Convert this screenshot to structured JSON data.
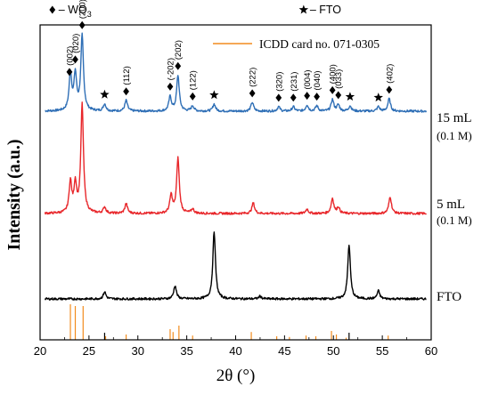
{
  "chart_data": {
    "type": "line",
    "xlabel": "2θ (°)",
    "ylabel": "Intensity (a.u.)",
    "xlim": [
      20,
      60
    ],
    "x_ticks": [
      "20",
      "25",
      "30",
      "35",
      "40",
      "45",
      "50",
      "55",
      "60"
    ],
    "grid": false,
    "top_legend": [
      {
        "marker": "diamond",
        "label_main": "– WO",
        "label_sub": "3",
        "x": 24.9
      },
      {
        "marker": "star",
        "label_main": "– FTO",
        "label_sub": "",
        "x": 50.6
      }
    ],
    "reference_legend": {
      "label": "ICDD card no. 071-0305",
      "color": "#f28c1e"
    },
    "series": [
      {
        "name": "15 mL",
        "sublabel": "(0.1 M)",
        "color": "#2f6fb6",
        "baseline": 0.0,
        "peaks": [
          {
            "x": 23.1,
            "h": 0.42
          },
          {
            "x": 23.6,
            "h": 0.4
          },
          {
            "x": 24.3,
            "h": 0.84
          },
          {
            "x": 26.6,
            "h": 0.08
          },
          {
            "x": 28.8,
            "h": 0.12
          },
          {
            "x": 33.3,
            "h": 0.16
          },
          {
            "x": 34.1,
            "h": 0.4
          },
          {
            "x": 35.6,
            "h": 0.06
          },
          {
            "x": 37.8,
            "h": 0.08
          },
          {
            "x": 41.7,
            "h": 0.1
          },
          {
            "x": 44.4,
            "h": 0.05
          },
          {
            "x": 45.9,
            "h": 0.05
          },
          {
            "x": 47.3,
            "h": 0.07
          },
          {
            "x": 48.3,
            "h": 0.06
          },
          {
            "x": 49.9,
            "h": 0.13
          },
          {
            "x": 50.5,
            "h": 0.07
          },
          {
            "x": 51.7,
            "h": 0.06
          },
          {
            "x": 54.6,
            "h": 0.05
          },
          {
            "x": 55.7,
            "h": 0.14
          }
        ]
      },
      {
        "name": "5 mL",
        "sublabel": "(0.1 M)",
        "color": "#e8262a",
        "baseline": 0.0,
        "peaks": [
          {
            "x": 23.1,
            "h": 0.35
          },
          {
            "x": 23.6,
            "h": 0.32
          },
          {
            "x": 24.3,
            "h": 1.22
          },
          {
            "x": 26.6,
            "h": 0.07
          },
          {
            "x": 28.8,
            "h": 0.11
          },
          {
            "x": 33.4,
            "h": 0.2
          },
          {
            "x": 34.1,
            "h": 0.62
          },
          {
            "x": 35.6,
            "h": 0.05
          },
          {
            "x": 41.8,
            "h": 0.12
          },
          {
            "x": 47.3,
            "h": 0.05
          },
          {
            "x": 49.9,
            "h": 0.17
          },
          {
            "x": 50.5,
            "h": 0.07
          },
          {
            "x": 55.8,
            "h": 0.19
          }
        ]
      },
      {
        "name": "FTO",
        "sublabel": "",
        "color": "#000000",
        "baseline": 0.0,
        "peaks": [
          {
            "x": 26.6,
            "h": 0.08
          },
          {
            "x": 33.8,
            "h": 0.15
          },
          {
            "x": 37.8,
            "h": 0.76
          },
          {
            "x": 42.5,
            "h": 0.03
          },
          {
            "x": 51.6,
            "h": 0.61
          },
          {
            "x": 54.6,
            "h": 0.09
          }
        ]
      }
    ],
    "reference_lines": [
      {
        "x": 23.1,
        "h": 1.0
      },
      {
        "x": 23.6,
        "h": 0.95
      },
      {
        "x": 24.4,
        "h": 0.95
      },
      {
        "x": 26.7,
        "h": 0.1
      },
      {
        "x": 28.8,
        "h": 0.15
      },
      {
        "x": 33.3,
        "h": 0.3
      },
      {
        "x": 33.6,
        "h": 0.22
      },
      {
        "x": 34.2,
        "h": 0.4
      },
      {
        "x": 35.6,
        "h": 0.12
      },
      {
        "x": 41.6,
        "h": 0.22
      },
      {
        "x": 44.2,
        "h": 0.1
      },
      {
        "x": 45.5,
        "h": 0.08
      },
      {
        "x": 47.2,
        "h": 0.12
      },
      {
        "x": 48.2,
        "h": 0.1
      },
      {
        "x": 49.8,
        "h": 0.25
      },
      {
        "x": 50.3,
        "h": 0.15
      },
      {
        "x": 51.3,
        "h": 0.06
      },
      {
        "x": 55.6,
        "h": 0.12
      }
    ],
    "fto_markers": [
      26.6,
      51.6
    ],
    "annotations": [
      {
        "x": 23.0,
        "marker": "diamond",
        "label": "(002)",
        "series": 0
      },
      {
        "x": 23.6,
        "marker": "diamond",
        "label": "(020)",
        "series": 0
      },
      {
        "x": 24.3,
        "marker": "diamond",
        "label": "(200)",
        "series": 0
      },
      {
        "x": 26.6,
        "marker": "star",
        "label": "",
        "series": 0
      },
      {
        "x": 28.8,
        "marker": "diamond",
        "label": "(112)",
        "series": 0
      },
      {
        "x": 33.3,
        "marker": "diamond",
        "label": "(-202)",
        "series": 0
      },
      {
        "x": 34.1,
        "marker": "diamond",
        "label": "(202)",
        "series": 0
      },
      {
        "x": 35.6,
        "marker": "diamond",
        "label": "(122)",
        "series": 0
      },
      {
        "x": 37.8,
        "marker": "star",
        "label": "",
        "series": 0
      },
      {
        "x": 41.7,
        "marker": "diamond",
        "label": "(222)",
        "series": 0
      },
      {
        "x": 44.4,
        "marker": "diamond",
        "label": "(320)",
        "series": 0
      },
      {
        "x": 45.9,
        "marker": "diamond",
        "label": "(231)",
        "series": 0
      },
      {
        "x": 47.3,
        "marker": "diamond",
        "label": "(004)",
        "series": 0
      },
      {
        "x": 48.3,
        "marker": "diamond",
        "label": "(040)",
        "series": 0
      },
      {
        "x": 49.9,
        "marker": "diamond",
        "label": "(400)",
        "series": 0
      },
      {
        "x": 50.5,
        "marker": "diamond",
        "label": "(033)",
        "series": 0
      },
      {
        "x": 51.7,
        "marker": "star",
        "label": "",
        "series": 0
      },
      {
        "x": 54.6,
        "marker": "star",
        "label": "",
        "series": 0
      },
      {
        "x": 55.7,
        "marker": "diamond",
        "label": "(402)",
        "series": 0
      }
    ]
  }
}
